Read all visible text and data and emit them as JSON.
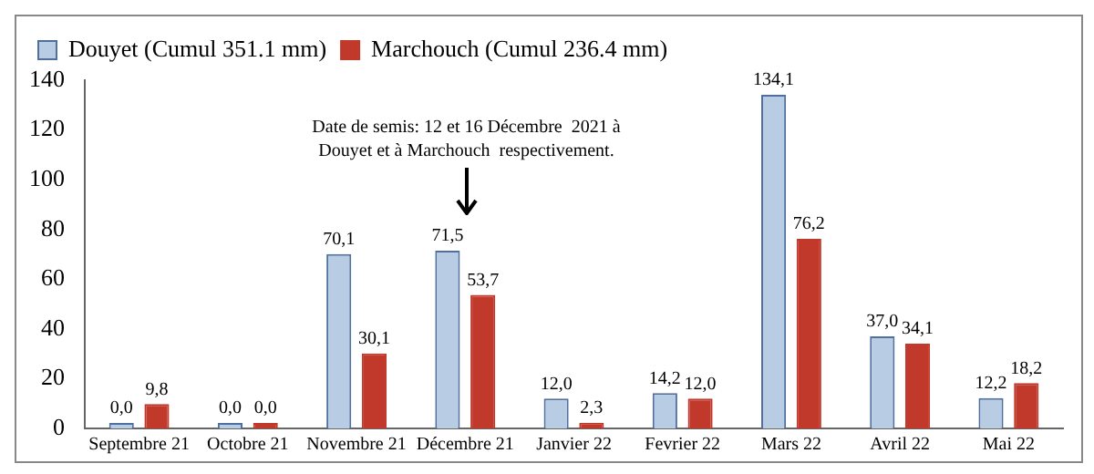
{
  "chart_data": {
    "type": "bar",
    "categories": [
      "Septembre 21",
      "Octobre 21",
      "Novembre 21",
      "Décembre 21",
      "Janvier 22",
      "Fevrier 22",
      "Mars 22",
      "Avril 22",
      "Mai 22"
    ],
    "series": [
      {
        "name": "Douyet (Cumul 351.1 mm)",
        "color": "#b8cce4",
        "values": [
          0.0,
          0.0,
          70.1,
          71.5,
          12.0,
          14.2,
          134.1,
          37.0,
          12.2
        ],
        "value_labels": [
          "0,0",
          "0,0",
          "70,1",
          "71,5",
          "12,0",
          "14,2",
          "134,1",
          "37,0",
          "12,2"
        ]
      },
      {
        "name": "Marchouch (Cumul 236.4 mm)",
        "color": "#c0392b",
        "values": [
          9.8,
          0.0,
          30.1,
          53.7,
          2.3,
          12.0,
          76.2,
          34.1,
          18.2
        ],
        "value_labels": [
          "9,8",
          "0,0",
          "30,1",
          "53,7",
          "2,3",
          "12,0",
          "76,2",
          "34,1",
          "18,2"
        ]
      }
    ],
    "ylim": [
      0,
      140
    ],
    "yticks": [
      0,
      20,
      40,
      60,
      80,
      100,
      120,
      140
    ],
    "grid": false,
    "legend": "top",
    "annotations": [
      "Date de semis: 12 et 16 Décembre  2021 à Douyet et à Marchouch  respectivement."
    ]
  }
}
